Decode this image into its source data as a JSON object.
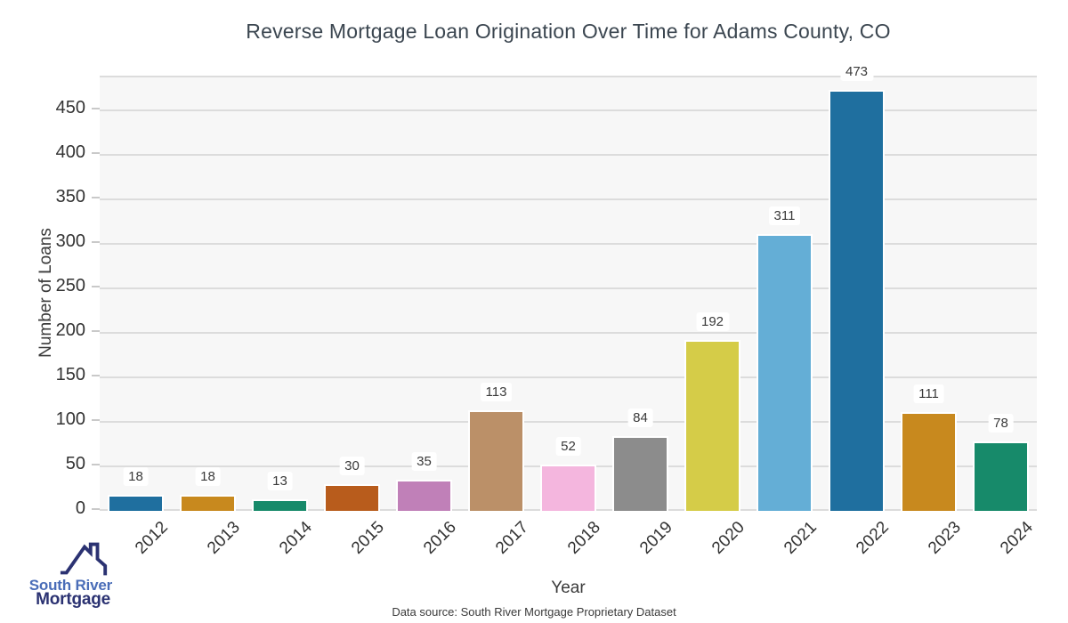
{
  "chart_data": {
    "type": "bar",
    "title": "Reverse Mortgage Loan Origination Over Time for Adams County, CO",
    "xlabel": "Year",
    "ylabel": "Number of Loans",
    "categories": [
      "2012",
      "2013",
      "2014",
      "2015",
      "2016",
      "2017",
      "2018",
      "2019",
      "2020",
      "2021",
      "2022",
      "2023",
      "2024"
    ],
    "values": [
      18,
      18,
      13,
      30,
      35,
      113,
      52,
      84,
      192,
      311,
      473,
      111,
      78
    ],
    "bar_colors": [
      "#1f6f9f",
      "#c8891e",
      "#178a6a",
      "#b85c1c",
      "#c080b8",
      "#bb9068",
      "#f4b6de",
      "#8c8c8c",
      "#d5cc48",
      "#64aed6",
      "#1f6f9f",
      "#c8891e",
      "#178a6a"
    ],
    "yticks": [
      0,
      50,
      100,
      150,
      200,
      250,
      300,
      350,
      400,
      450
    ],
    "ylim": [
      0,
      487
    ],
    "grid": "horizontal",
    "legend": "none",
    "value_labels": true
  },
  "footer": {
    "source_text": "Data source: South River Mortgage Proprietary Dataset"
  },
  "logo": {
    "icon": "house-roof-icon",
    "line1": "South River",
    "line2": "Mortgage",
    "line1_color": "#4a6db8",
    "line2_color": "#2b3272"
  },
  "colors": {
    "page_background": "#ffffff",
    "panel_background": "#f7f7f7",
    "gridline": "#dcdcdc",
    "text": "#3a3a3a"
  }
}
